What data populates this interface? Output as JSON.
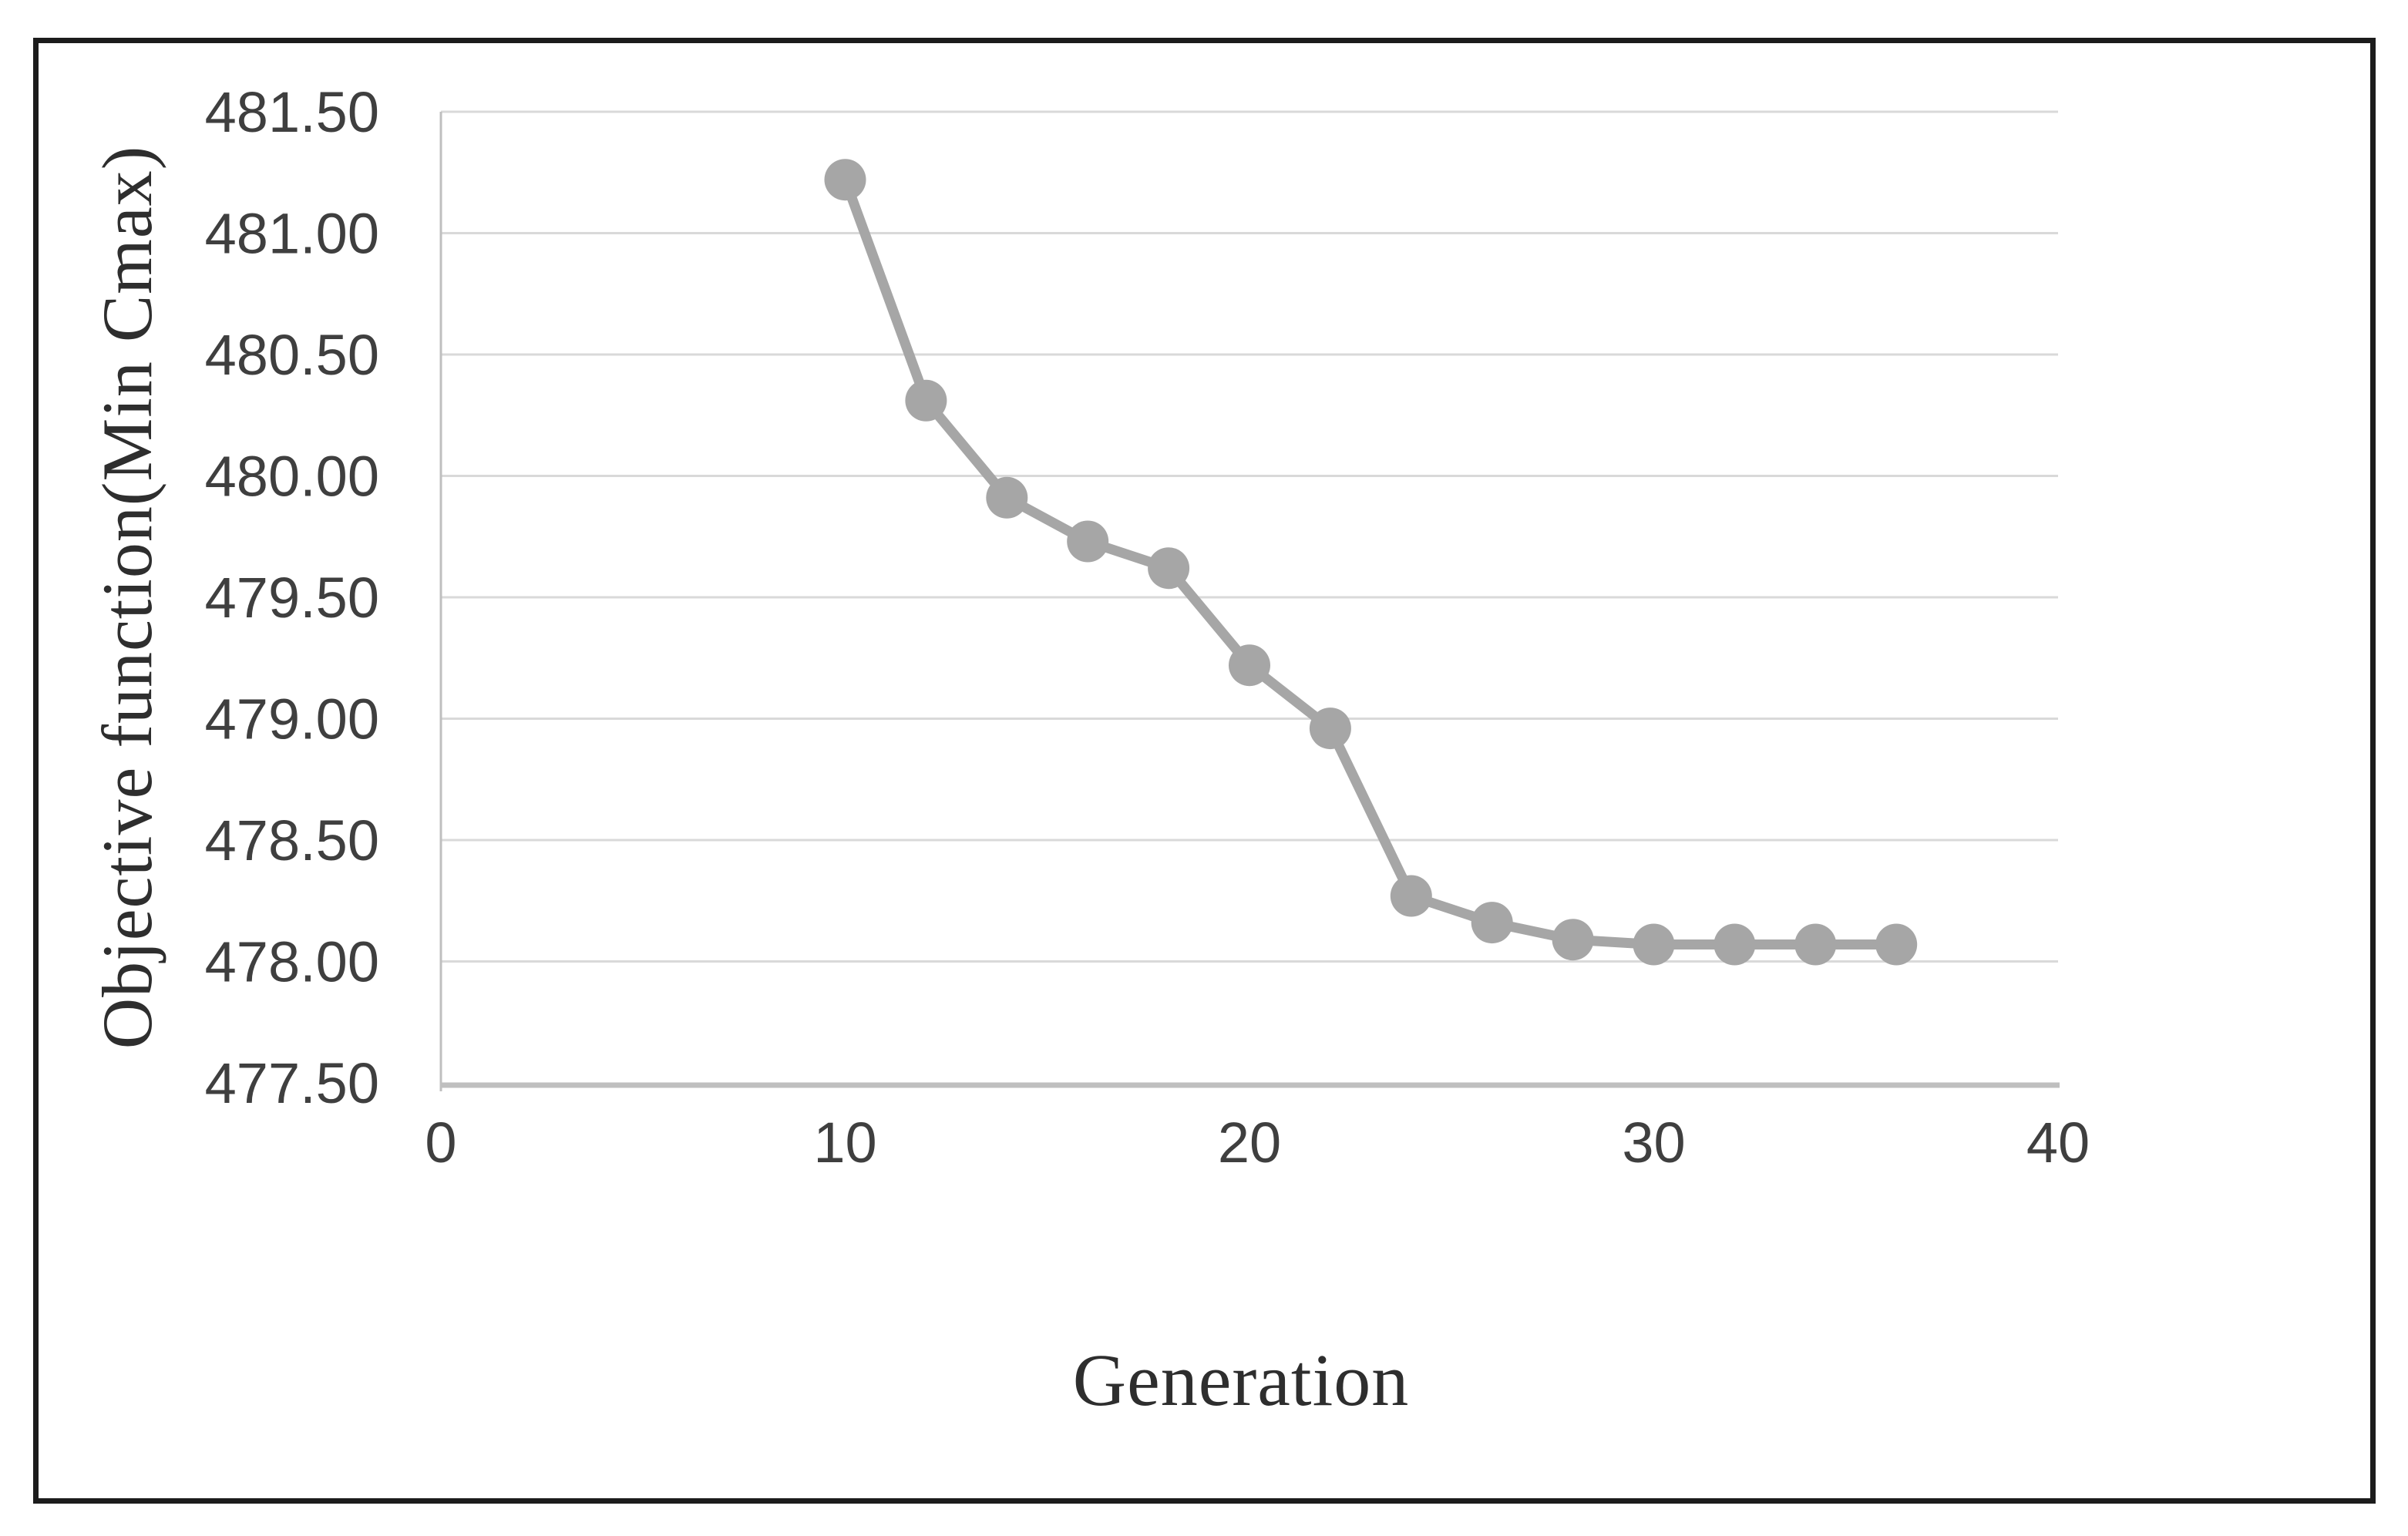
{
  "figure": {
    "border_color": "#1c1c1c",
    "background": "#ffffff"
  },
  "chart_data": {
    "type": "line",
    "title": "",
    "xlabel": "Generation",
    "ylabel": "Objective function(Min Cmax)",
    "series": [
      {
        "name": "Objective function (Min Cmax)",
        "x": [
          10,
          12,
          14,
          16,
          18,
          20,
          22,
          24,
          26,
          28,
          30,
          32,
          34,
          36
        ],
        "y": [
          481.22,
          480.31,
          479.91,
          479.73,
          479.62,
          479.22,
          478.96,
          478.27,
          478.16,
          478.09,
          478.07,
          478.07,
          478.07,
          478.07
        ]
      }
    ],
    "xlim": [
      0,
      40
    ],
    "ylim": [
      477.5,
      481.5
    ],
    "xticks": [
      0,
      10,
      20,
      30,
      40
    ],
    "xtick_labels": [
      "0",
      "10",
      "20",
      "30",
      "40"
    ],
    "yticks": [
      477.5,
      478.0,
      478.5,
      479.0,
      479.5,
      480.0,
      480.5,
      481.0,
      481.5
    ],
    "ytick_labels": [
      "477.50",
      "478.00",
      "478.50",
      "479.00",
      "479.50",
      "480.00",
      "480.50",
      "481.00",
      "481.50"
    ],
    "grid": "horizontal",
    "legend": "none",
    "marker": "circle",
    "line_color": "#a6a6a6",
    "marker_color": "#a6a6a6",
    "gridline_color": "#d9d9d9",
    "axis_line_color": "#bfbfbf",
    "tick_label_color": "#3f3f3f",
    "title_color": "#2e2e2e"
  }
}
